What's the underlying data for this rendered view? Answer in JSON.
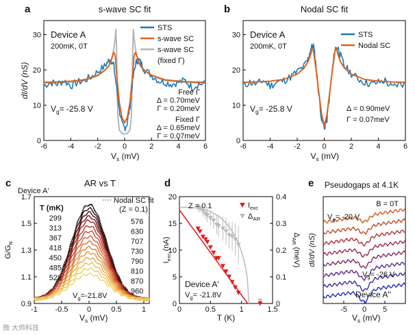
{
  "colors": {
    "sts": "#1f77b4",
    "fit": "#d9641e",
    "fixed": "#b5b5b5",
    "red_text": "#c0392b",
    "blue_text": "#2b2bd6",
    "exc": "#e41a1c",
    "ar": "#bbbbbb"
  },
  "watermark": "微 大师科技",
  "chart_data": [
    {
      "id": "a",
      "type": "line",
      "panel_letter": "a",
      "title": "s-wave SC fit",
      "xlabel": "V",
      "xlabel_sub": "s",
      "xlabel_unit": " (mV)",
      "ylabel": "dI/dV (nS)",
      "xlim": [
        -6,
        6
      ],
      "ylim": [
        0,
        34
      ],
      "xticks": [
        -6,
        -4,
        -2,
        0,
        2,
        4,
        6
      ],
      "yticks": [
        0,
        10,
        20,
        30
      ],
      "device": "Device A",
      "condition": "200mK, 0T",
      "gate_pre": "V",
      "gate_sub": "g",
      "gate_post": "= -25.8 V",
      "legend": [
        "STS",
        "s-wave SC",
        "s-wave SC",
        "(fixed Γ)"
      ],
      "free_label": [
        "Free Γ",
        "Δ = 0.70meV",
        "Γ = 0.20meV"
      ],
      "fixed_label": [
        "Fixed Γ",
        "Δ = 0.65meV",
        "Γ = 0.07meV"
      ],
      "series": [
        {
          "name": "STS",
          "x": [
            -6,
            -5.5,
            -5,
            -4.5,
            -4,
            -3.5,
            -3,
            -2.5,
            -2,
            -1.5,
            -1.2,
            -1,
            -0.8,
            -0.6,
            -0.4,
            -0.2,
            0,
            0.2,
            0.4,
            0.6,
            0.8,
            1,
            1.2,
            1.5,
            2,
            2.5,
            3,
            3.5,
            4,
            4.5,
            5,
            5.5,
            6
          ],
          "y": [
            15.5,
            16.5,
            16,
            17,
            15.5,
            16.5,
            17,
            18,
            19.5,
            21,
            22.5,
            23,
            21,
            15,
            9,
            4.5,
            3.5,
            5,
            10,
            17,
            21.5,
            23,
            22,
            20,
            18.5,
            17,
            16.5,
            16,
            16.5,
            17,
            15,
            16,
            16
          ]
        },
        {
          "name": "s-wave SC",
          "x": [
            -6,
            -5,
            -4,
            -3,
            -2,
            -1.5,
            -1.2,
            -1,
            -0.9,
            -0.8,
            -0.7,
            -0.6,
            -0.4,
            -0.2,
            0,
            0.2,
            0.4,
            0.6,
            0.7,
            0.8,
            0.9,
            1,
            1.2,
            1.5,
            2,
            3,
            4,
            5,
            6
          ],
          "y": [
            16.5,
            16.6,
            16.8,
            17.2,
            18.5,
            19.8,
            21,
            22.6,
            24,
            25,
            24,
            19,
            11,
            6.5,
            5,
            6.5,
            11,
            19,
            24,
            25,
            24,
            22.6,
            21,
            19.8,
            18.5,
            17.2,
            16.8,
            16.6,
            16.5
          ]
        },
        {
          "name": "s-wave SC (fixed Γ)",
          "x": [
            -6,
            -5,
            -4,
            -3,
            -2,
            -1.5,
            -1.2,
            -1,
            -0.8,
            -0.7,
            -0.65,
            -0.6,
            -0.55,
            -0.5,
            -0.4,
            -0.2,
            0,
            0.2,
            0.4,
            0.5,
            0.55,
            0.6,
            0.65,
            0.7,
            0.8,
            1,
            1.2,
            1.5,
            2,
            3,
            4,
            5,
            6
          ],
          "y": [
            16.3,
            16.4,
            16.6,
            17,
            18.3,
            19.8,
            21,
            22.5,
            26,
            29,
            31.5,
            26,
            14,
            7,
            3,
            2,
            1.8,
            2,
            3,
            7,
            14,
            26,
            31.5,
            29,
            26,
            22.5,
            21,
            19.8,
            18.3,
            17,
            16.6,
            16.4,
            16.3
          ]
        }
      ]
    },
    {
      "id": "b",
      "type": "line",
      "panel_letter": "b",
      "title": "Nodal SC fit",
      "xlabel": "V",
      "xlabel_sub": "s",
      "xlabel_unit": " (mV)",
      "xlim": [
        -6,
        6
      ],
      "ylim": [
        0,
        34
      ],
      "xticks": [
        -6,
        -4,
        -2,
        0,
        2,
        4,
        6
      ],
      "yticks": [
        0,
        10,
        20,
        30
      ],
      "device": "Device A",
      "condition": "200mK, 0T",
      "gate_pre": "V",
      "gate_sub": "g",
      "gate_post": "= -25.8 V",
      "legend": [
        "STS",
        "Nodal SC"
      ],
      "params": [
        "Δ = 0.90meV",
        "Γ = 0.07meV"
      ],
      "series": [
        {
          "name": "STS",
          "x": [
            -6,
            -5.5,
            -5,
            -4.5,
            -4,
            -3.5,
            -3,
            -2.5,
            -2,
            -1.5,
            -1.2,
            -1,
            -0.8,
            -0.6,
            -0.4,
            -0.2,
            0,
            0.2,
            0.4,
            0.6,
            0.8,
            1,
            1.2,
            1.5,
            2,
            2.5,
            3,
            3.5,
            4,
            4.5,
            5,
            5.5,
            6
          ],
          "y": [
            15.5,
            16.5,
            16,
            17,
            15.5,
            16.5,
            17,
            18,
            19.5,
            21,
            23,
            26,
            27,
            21,
            13,
            6,
            3.5,
            6,
            13,
            20,
            26,
            26.5,
            24,
            21,
            19,
            17.5,
            16.5,
            16,
            16.5,
            17,
            15,
            16,
            16
          ]
        },
        {
          "name": "Nodal SC",
          "x": [
            -6,
            -5,
            -4,
            -3,
            -2,
            -1.5,
            -1.2,
            -1,
            -0.9,
            -0.8,
            -0.6,
            -0.4,
            -0.2,
            0,
            0.2,
            0.4,
            0.6,
            0.8,
            0.9,
            1,
            1.2,
            1.5,
            2,
            3,
            4,
            5,
            6
          ],
          "y": [
            16.5,
            16.6,
            16.8,
            17.3,
            18.8,
            20.5,
            22.3,
            24.5,
            26,
            25.5,
            20,
            13.5,
            7.5,
            4,
            7.5,
            13.5,
            20,
            25.5,
            26,
            24.5,
            22.3,
            20.5,
            18.8,
            17.3,
            16.8,
            16.6,
            16.5
          ]
        }
      ]
    },
    {
      "id": "c",
      "type": "line",
      "panel_letter": "c",
      "title": "AR vs T",
      "device": "Device A'",
      "ylabel_main": "G/G",
      "ylabel_sub": "N",
      "xlabel": "V",
      "xlabel_sub": "s",
      "xlabel_unit": " (mV)",
      "xlim": [
        -1,
        1.1
      ],
      "ylim": [
        0.9,
        1.7
      ],
      "xticks": [
        -1,
        -0.5,
        0,
        0.5,
        1
      ],
      "xtick_labels": [
        "-1",
        "-0.5",
        "0",
        "0.5",
        "1"
      ],
      "yticks": [
        0.9,
        1.1,
        1.3,
        1.5,
        1.7
      ],
      "ytick_labels": [
        "0.9",
        "1.1",
        "1.3",
        "1.5",
        "1.7"
      ],
      "legend_fit": [
        "Nodal SC fit",
        "(Z = 0.1)"
      ],
      "temp_header": "T (mK)",
      "temps": [
        299,
        313,
        367,
        418,
        450,
        485,
        528,
        576,
        630,
        707,
        730,
        790,
        810,
        870,
        960
      ],
      "peaks": [
        1.64,
        1.61,
        1.58,
        1.55,
        1.52,
        1.48,
        1.44,
        1.4,
        1.36,
        1.32,
        1.28,
        1.24,
        1.2,
        1.16,
        1.12
      ],
      "temp_colors": [
        "#000000",
        "#2a0a0a",
        "#520f0f",
        "#7a1414",
        "#98231d",
        "#b23326",
        "#c3452c",
        "#cf5a2e",
        "#d96d30",
        "#e08233",
        "#e69638",
        "#eaa83f",
        "#edba48",
        "#f0ca58",
        "#f3d56a"
      ],
      "gate_pre": "V",
      "gate_sub": "g",
      "gate_post": "=-21.8V"
    },
    {
      "id": "d",
      "type": "scatter",
      "panel_letter": "d",
      "ylabel_left": "I",
      "ylabel_left_sub": "exc",
      "ylabel_left_unit": " (nA)",
      "ylabel_right": "Δ",
      "ylabel_right_sub": "AR",
      "ylabel_right_unit": " (meV)",
      "xlabel": "T (K)",
      "xlim": [
        0,
        1.5
      ],
      "ylim_left": [
        0,
        20
      ],
      "ylim_right": [
        0,
        0.4
      ],
      "xticks": [
        0,
        0.5,
        1,
        1.5
      ],
      "xtick_labels": [
        "0",
        "0.5",
        "1",
        "1.5"
      ],
      "yticks_left": [
        0,
        5,
        10,
        15,
        20
      ],
      "yticks_right": [
        0,
        0.1,
        0.2,
        0.3,
        0.4
      ],
      "ytick_labels_right": [
        "0",
        "0.1",
        "0.2",
        "0.3",
        "0.4"
      ],
      "z_label": "Z = 0.1",
      "legend": [
        "I",
        "Δ"
      ],
      "legend_subs": [
        "exc",
        "AR"
      ],
      "device": "Device A'",
      "gate_pre": "V",
      "gate_sub": "g",
      "gate_post": "= -21.8V",
      "exc": {
        "x": [
          0.3,
          0.33,
          0.38,
          0.42,
          0.45,
          0.5,
          0.55,
          0.6,
          0.63,
          0.7,
          0.75,
          0.8,
          0.85,
          0.9,
          0.95,
          1.3
        ],
        "y": [
          14,
          13.5,
          12.5,
          12,
          11.5,
          10.5,
          9.5,
          8.5,
          8.5,
          7,
          6,
          5,
          4,
          3,
          2,
          0
        ]
      },
      "exc_fit": {
        "x": [
          0,
          1.1
        ],
        "y": [
          17.5,
          0
        ]
      },
      "ar": {
        "x": [
          0.3,
          0.33,
          0.38,
          0.42,
          0.45,
          0.5,
          0.55,
          0.6,
          0.63,
          0.7,
          0.75,
          0.8,
          0.85,
          0.9,
          0.95,
          1.3
        ],
        "y": [
          0.36,
          0.355,
          0.345,
          0.335,
          0.33,
          0.32,
          0.31,
          0.295,
          0.29,
          0.28,
          0.27,
          0.255,
          0.25,
          0.24,
          0.22,
          0.01
        ],
        "err": [
          0.015,
          0.015,
          0.02,
          0.02,
          0.025,
          0.03,
          0.03,
          0.035,
          0.04,
          0.045,
          0.05,
          0.05,
          0.055,
          0.06,
          0.07,
          0.01
        ]
      }
    },
    {
      "id": "e",
      "type": "line",
      "panel_letter": "e",
      "title": "Pseudogaps at 4.1K",
      "field": "B = 0T",
      "ylabel": "dI/dV (nS)",
      "xlabel": "V",
      "xlabel_sub": "s",
      "xlabel_unit": " (mV)",
      "xlim": [
        -10,
        10
      ],
      "xticks": [
        -5,
        0,
        5
      ],
      "device": "Device A''",
      "top_gate_pre": "V",
      "top_gate_sub": "g",
      "top_gate_post": "= -20 V",
      "bottom_gate_pre": "V",
      "bottom_gate_sub": "g",
      "bottom_gate_post": "= -26 V",
      "curve_colors": [
        "#d05a1a",
        "#c8461f",
        "#b03030",
        "#9a2a4a",
        "#7c2a6a",
        "#5a2a88",
        "#3c2aa4",
        "#1f2ac4"
      ]
    }
  ]
}
